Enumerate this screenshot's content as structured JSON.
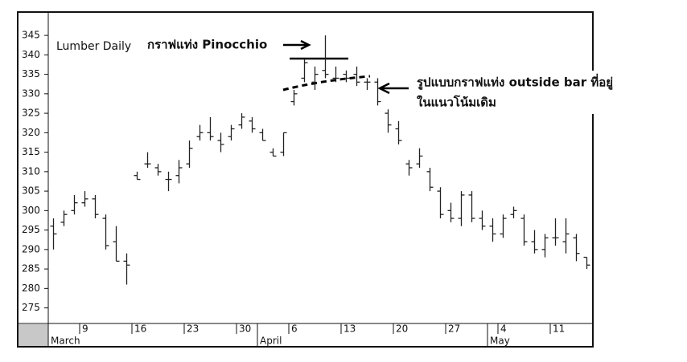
{
  "chart_data": {
    "type": "ohlc",
    "annotations": [
      "Lumber Daily",
      "กราฟแท่ง Pinocchio",
      "รูปแบบกราฟแท่ง outside bar ที่อยู่",
      "ในแนวโน้มเดิม"
    ],
    "months": [
      {
        "name": "March",
        "days": [
          null,
          null,
          null,
          "9",
          null,
          null,
          null,
          null,
          "16",
          null,
          null,
          null,
          null,
          "23",
          null,
          null,
          null,
          null,
          "30",
          null
        ]
      },
      {
        "name": "April",
        "days": [
          null,
          null,
          null,
          "6",
          null,
          null,
          null,
          null,
          "13",
          null,
          null,
          null,
          null,
          "20",
          null,
          null,
          null,
          null,
          "27",
          null,
          null,
          null
        ]
      },
      {
        "name": "May",
        "days": [
          null,
          "4",
          null,
          null,
          null,
          null,
          "11",
          null,
          null,
          null
        ]
      }
    ],
    "open": [
      296,
      297,
      300,
      302,
      303,
      298,
      292,
      287,
      309,
      312,
      311,
      308,
      309,
      312,
      319,
      320,
      318,
      319,
      322,
      323,
      320,
      315,
      315,
      328,
      334,
      333,
      336,
      334,
      335,
      335,
      333,
      333,
      325,
      321,
      312,
      312,
      310,
      305,
      300,
      298,
      304,
      298,
      296,
      294,
      299,
      298,
      292,
      290,
      293,
      292,
      293,
      288
    ],
    "high": [
      298,
      300,
      304,
      305,
      304,
      299,
      296,
      289,
      310,
      315,
      312,
      310,
      313,
      318,
      322,
      324,
      320,
      322,
      325,
      324,
      321,
      316,
      320,
      331,
      339,
      337,
      345,
      337,
      336,
      337,
      334,
      334,
      326,
      323,
      313,
      316,
      311,
      306,
      302,
      305,
      305,
      300,
      298,
      299,
      301,
      299,
      295,
      294,
      298,
      298,
      294,
      288
    ],
    "low": [
      290,
      296,
      299,
      301,
      298,
      290,
      287,
      281,
      308,
      311,
      309,
      305,
      307,
      311,
      318,
      318,
      315,
      318,
      321,
      320,
      318,
      314,
      314,
      327,
      333,
      331,
      334,
      333,
      333,
      332,
      331,
      327,
      320,
      317,
      309,
      311,
      305,
      298,
      297,
      296,
      297,
      295,
      292,
      293,
      298,
      291,
      289,
      288,
      291,
      289,
      287,
      285
    ],
    "close": [
      294,
      299,
      302,
      303,
      299,
      291,
      287,
      286,
      308,
      312,
      310,
      308,
      311,
      316,
      320,
      319,
      317,
      321,
      324,
      321,
      318,
      314,
      320,
      330,
      338,
      335,
      335,
      334,
      334,
      333,
      333,
      328,
      322,
      318,
      311,
      314,
      306,
      299,
      298,
      304,
      298,
      296,
      294,
      298,
      300,
      292,
      290,
      293,
      293,
      294,
      289,
      286
    ],
    "color": "#222222",
    "ylim": [
      271,
      351
    ],
    "yticks": [
      275,
      280,
      285,
      290,
      295,
      300,
      305,
      310,
      315,
      320,
      325,
      330,
      335,
      340,
      345
    ]
  }
}
